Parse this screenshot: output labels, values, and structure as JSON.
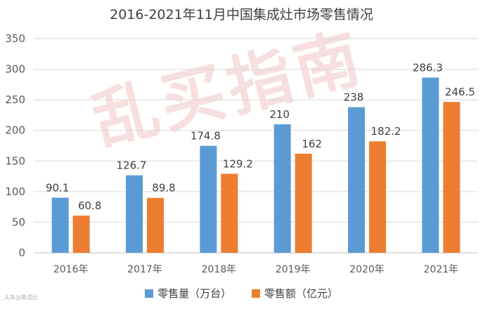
{
  "chart_data": {
    "type": "bar",
    "title": "2016-2021年11月中国集成灶市场零售情况",
    "categories": [
      "2016年",
      "2017年",
      "2018年",
      "2019年",
      "2020年",
      "2021年"
    ],
    "series": [
      {
        "name": "零售量（万台）",
        "values": [
          90.1,
          126.7,
          174.8,
          210,
          238,
          286.3
        ],
        "color": "#5b9bd5"
      },
      {
        "name": "零售额（亿元）",
        "values": [
          60.8,
          89.8,
          129.2,
          162,
          182.2,
          246.5
        ],
        "color": "#ed7d31"
      }
    ],
    "ylim": [
      0,
      350
    ],
    "yticks": [
      0,
      50,
      100,
      150,
      200,
      250,
      300,
      350
    ],
    "grid": true,
    "legend": "bottom"
  },
  "watermark": "乱买指南",
  "corner_mark": "头条@集成灶"
}
